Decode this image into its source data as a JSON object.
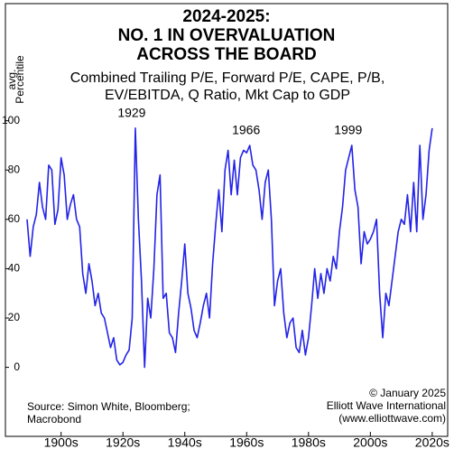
{
  "chart_data": {
    "type": "line",
    "title": [
      "2024-2025:",
      "NO. 1 IN OVERVALUATION",
      "ACROSS THE BOARD"
    ],
    "subtitle": [
      "Combined Trailing P/E, Forward P/E, CAPE, P/B,",
      "EV/EBITDA, Q Ratio, Mkt Cap to GDP"
    ],
    "y_label": [
      "avg.",
      "Percentile"
    ],
    "source": [
      "Source: Simon White, Bloomberg;",
      "Macrobond"
    ],
    "credit": [
      "© January 2025",
      "Elliott Wave International",
      "(www.elliottwave.com)"
    ],
    "annotations": [
      {
        "text": "1929",
        "x": 1929
      },
      {
        "text": "1966",
        "x": 1966
      },
      {
        "text": "1999",
        "x": 1999
      }
    ],
    "x": [
      1894,
      1895,
      1896,
      1897,
      1898,
      1899,
      1900,
      1901,
      1902,
      1903,
      1904,
      1905,
      1906,
      1907,
      1908,
      1909,
      1910,
      1911,
      1912,
      1913,
      1914,
      1915,
      1916,
      1917,
      1918,
      1919,
      1920,
      1921,
      1922,
      1923,
      1924,
      1925,
      1926,
      1927,
      1928,
      1929,
      1930,
      1931,
      1932,
      1933,
      1934,
      1935,
      1936,
      1937,
      1938,
      1939,
      1940,
      1941,
      1942,
      1943,
      1944,
      1945,
      1946,
      1947,
      1948,
      1949,
      1950,
      1951,
      1952,
      1953,
      1954,
      1955,
      1956,
      1957,
      1958,
      1959,
      1960,
      1961,
      1962,
      1963,
      1964,
      1965,
      1966,
      1967,
      1968,
      1969,
      1970,
      1971,
      1972,
      1973,
      1974,
      1975,
      1976,
      1977,
      1978,
      1979,
      1980,
      1981,
      1982,
      1983,
      1984,
      1985,
      1986,
      1987,
      1988,
      1989,
      1990,
      1991,
      1992,
      1993,
      1994,
      1995,
      1996,
      1997,
      1998,
      1999,
      2000,
      2001,
      2002,
      2003,
      2004,
      2005,
      2006,
      2007,
      2008,
      2009,
      2010,
      2011,
      2012,
      2013,
      2014,
      2015,
      2016,
      2017,
      2018,
      2019,
      2020,
      2021,
      2022,
      2023,
      2024,
      2025
    ],
    "series": [
      {
        "name": "avg. Percentile",
        "color": "#2323e8",
        "values": [
          60,
          45,
          57,
          62,
          75,
          65,
          60,
          82,
          80,
          58,
          64,
          85,
          78,
          60,
          66,
          70,
          60,
          57,
          38,
          30,
          42,
          35,
          25,
          30,
          22,
          20,
          14,
          8,
          12,
          3,
          1,
          2,
          5,
          7,
          20,
          97,
          60,
          35,
          0,
          28,
          20,
          40,
          70,
          78,
          28,
          30,
          14,
          12,
          6,
          22,
          35,
          50,
          30,
          24,
          15,
          12,
          18,
          25,
          30,
          20,
          42,
          58,
          72,
          55,
          80,
          88,
          70,
          84,
          70,
          85,
          88,
          87,
          90,
          82,
          80,
          72,
          60,
          75,
          80,
          60,
          25,
          35,
          40,
          22,
          12,
          18,
          20,
          8,
          6,
          15,
          5,
          12,
          25,
          40,
          28,
          38,
          30,
          40,
          35,
          45,
          40,
          55,
          65,
          80,
          85,
          90,
          72,
          65,
          42,
          55,
          50,
          52,
          55,
          60,
          30,
          12,
          30,
          25,
          35,
          45,
          55,
          60,
          58,
          70,
          55,
          75,
          55,
          90,
          60,
          70,
          88,
          97
        ]
      }
    ],
    "xlim": [
      1887,
      2030
    ],
    "ylim": [
      -28,
      147.5
    ],
    "yticks": [
      0,
      20,
      40,
      60,
      80,
      100
    ],
    "xticks": [
      {
        "value": 1905,
        "label": "1900s"
      },
      {
        "value": 1925,
        "label": "1920s"
      },
      {
        "value": 1945,
        "label": "1940s"
      },
      {
        "value": 1965,
        "label": "1960s"
      },
      {
        "value": 1985,
        "label": "1980s"
      },
      {
        "value": 2005,
        "label": "2000s"
      },
      {
        "value": 2025,
        "label": "2020s"
      }
    ]
  }
}
